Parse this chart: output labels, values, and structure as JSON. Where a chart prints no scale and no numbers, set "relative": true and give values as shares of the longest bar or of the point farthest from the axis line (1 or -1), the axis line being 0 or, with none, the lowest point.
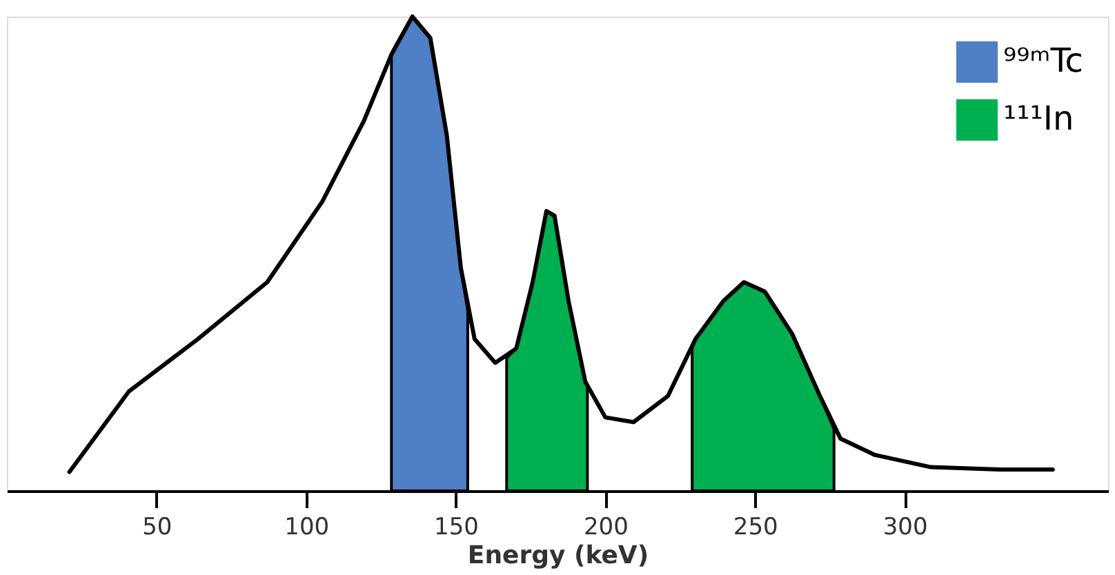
{
  "chart_data": {
    "type": "line",
    "relative": true,
    "xlabel": "Energy (keV)",
    "xlim": [
      0,
      368
    ],
    "xticks": [
      50,
      100,
      150,
      200,
      250,
      300
    ],
    "grid": false,
    "legend": "top right",
    "marker": "none",
    "line_style": "solid",
    "series": [
      {
        "type": "area",
        "name": "⁹⁹ᵐTc",
        "color": "#4f7fc4",
        "x": [
          128.5,
          130,
          135.5,
          141.5,
          147,
          151.7,
          154
        ],
        "values": [
          0.92,
          0.94,
          1.0,
          0.955,
          0.75,
          0.47,
          0.38
        ]
      },
      {
        "type": "area",
        "name": "¹¹¹In",
        "color": "#00b050",
        "x": [
          167,
          170.2,
          175.7,
          180.3,
          183,
          187.7,
          193.3,
          194,
          200,
          229,
          230.1,
          239.4,
          246.3,
          253.3,
          262.5,
          271.7,
          276.4
        ],
        "values": [
          0.28,
          0.3,
          0.44,
          0.59,
          0.58,
          0.4,
          0.23,
          0.22,
          null,
          0.3,
          0.32,
          0.4,
          0.44,
          0.42,
          0.33,
          0.2,
          0.13
        ]
      },
      {
        "color": "#000000",
        "x": [
          20.9,
          40.8,
          63.8,
          87,
          105.4,
          119.3,
          128.5,
          135.5,
          141.5,
          147,
          151.7,
          156.3,
          163.2,
          170.2,
          175.7,
          180.3,
          183,
          187.7,
          193.3,
          200,
          209.4,
          220.9,
          230.1,
          239.4,
          246.3,
          253.3,
          262.5,
          271.7,
          278.6,
          290,
          308.8,
          331.9,
          349.5
        ],
        "values": [
          0.04,
          0.21,
          0.32,
          0.44,
          0.61,
          0.78,
          0.92,
          1.0,
          0.955,
          0.75,
          0.47,
          0.32,
          0.27,
          0.3,
          0.44,
          0.59,
          0.58,
          0.4,
          0.23,
          0.155,
          0.145,
          0.2,
          0.32,
          0.4,
          0.44,
          0.42,
          0.33,
          0.2,
          0.11,
          0.076,
          0.05,
          0.045,
          0.045
        ]
      }
    ]
  }
}
